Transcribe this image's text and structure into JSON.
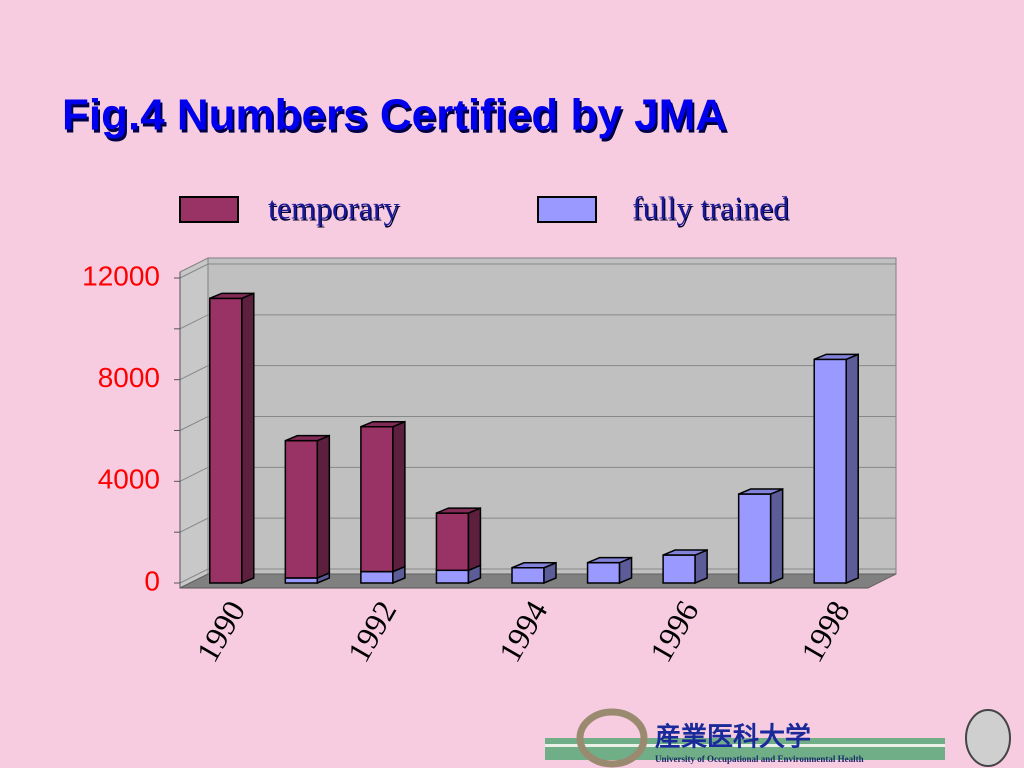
{
  "chart_data": {
    "type": "stacked-bar-3d",
    "title": "Fig.4 Numbers Certified by JMA",
    "categories": [
      "1990",
      null,
      "1992",
      null,
      "1994",
      null,
      "1996",
      null,
      "1998"
    ],
    "series": [
      {
        "name": "temporary",
        "color": "#993366",
        "values": [
          11200,
          5400,
          5700,
          2250,
          0,
          0,
          0,
          0,
          0
        ]
      },
      {
        "name": "fully trained",
        "color": "#9999ff",
        "values": [
          0,
          200,
          450,
          500,
          600,
          800,
          1100,
          3500,
          8800
        ]
      }
    ],
    "stack_order": [
      "fully trained",
      "temporary"
    ],
    "ylim": [
      0,
      12000
    ],
    "yticks": [
      0,
      4000,
      8000,
      12000
    ],
    "minor_yticks": [
      2000,
      6000,
      10000
    ],
    "grid": true,
    "legend": "top"
  },
  "footer": {
    "university_name": "産業医科大学",
    "university_english": "University of Occupational and Environmental Health"
  }
}
